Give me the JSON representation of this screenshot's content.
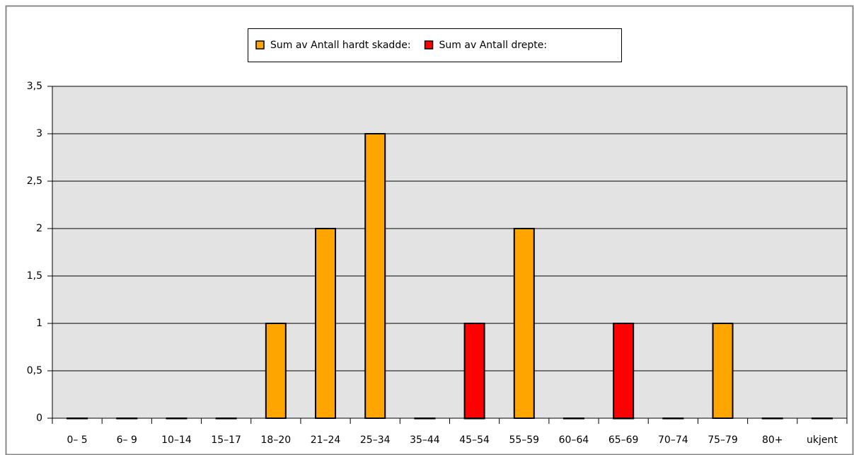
{
  "chart_data": {
    "type": "bar",
    "stacked": true,
    "categories": [
      "0– 5",
      "6– 9",
      "10–14",
      "15–17",
      "18–20",
      "21–24",
      "25–34",
      "35–44",
      "45–54",
      "55–59",
      "60–64",
      "65–69",
      "70–74",
      "75–79",
      "80+",
      "ukjent"
    ],
    "series": [
      {
        "name": "Sum av Antall hardt skadde:",
        "color": "#ffa500",
        "values": [
          0,
          0,
          0,
          0,
          1,
          2,
          3,
          0,
          0,
          2,
          0,
          0,
          0,
          1,
          0,
          0
        ]
      },
      {
        "name": "Sum av Antall drepte:",
        "color": "#ff0000",
        "values": [
          0,
          0,
          0,
          0,
          0,
          0,
          0,
          0,
          1,
          0,
          0,
          1,
          0,
          0,
          0,
          0
        ]
      }
    ],
    "ylim": [
      0,
      3.5
    ],
    "yticks": [
      0,
      {
        "value": 0.5,
        "label": "0,5"
      },
      1,
      {
        "value": 1.5,
        "label": "1,5"
      },
      2,
      {
        "value": 2.5,
        "label": "2,5"
      },
      3,
      {
        "value": 3.5,
        "label": "3,5"
      }
    ],
    "grid": true,
    "legend": "top"
  }
}
